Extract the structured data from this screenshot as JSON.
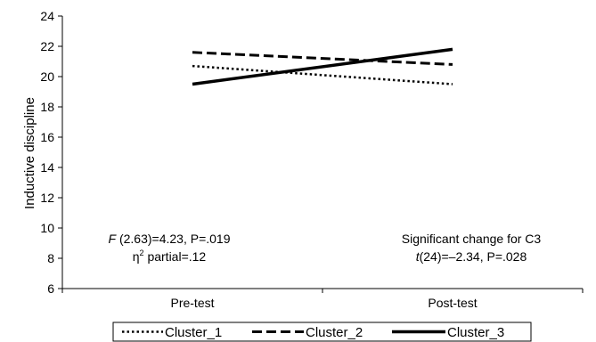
{
  "chart_data": {
    "type": "line",
    "title": "",
    "xlabel": "",
    "ylabel": "Inductive discipline",
    "categories": [
      "Pre-test",
      "Post-test"
    ],
    "ylim": [
      6,
      24
    ],
    "yticks": [
      6,
      8,
      10,
      12,
      14,
      16,
      18,
      20,
      22,
      24
    ],
    "series": [
      {
        "name": "Cluster_1",
        "values": [
          20.7,
          19.5
        ],
        "style": "dotted",
        "color": "#000000"
      },
      {
        "name": "Cluster_2",
        "values": [
          21.6,
          20.8
        ],
        "style": "dashed",
        "color": "#000000"
      },
      {
        "name": "Cluster_3",
        "values": [
          19.5,
          21.8
        ],
        "style": "solid",
        "color": "#000000"
      }
    ],
    "annotations": {
      "left_line1_italic": "F",
      "left_line1_rest": " (2.63)=4.23, P=.019",
      "left_line2_eta": "η",
      "left_line2_sup": "2",
      "left_line2_rest": " partial=.12",
      "right_line1": "Significant change for C3",
      "right_line2_italic": "t",
      "right_line2_rest": "(24)=–2.34, P=.028"
    },
    "legend_position": "bottom",
    "grid": false
  }
}
